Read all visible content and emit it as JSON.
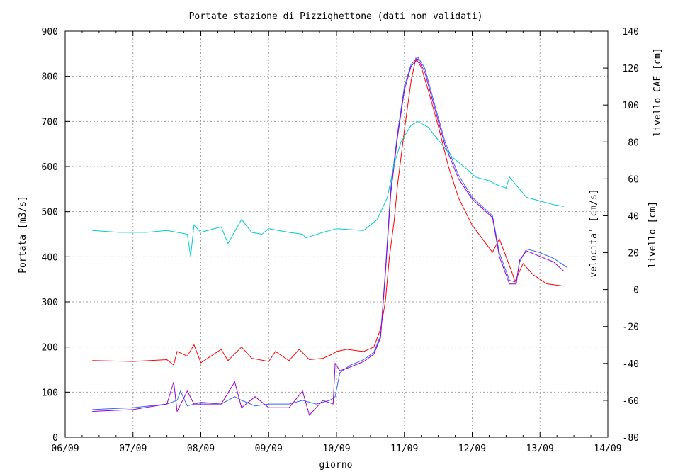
{
  "chart_data": {
    "type": "line",
    "title": "Portate stazione di Pizzighettone (dati non validati)",
    "xlabel": "giorno",
    "x_ticks": [
      "06/09",
      "07/09",
      "08/09",
      "09/09",
      "10/09",
      "11/09",
      "12/09",
      "13/09",
      "14/09"
    ],
    "xlim": [
      0,
      8
    ],
    "y_left": {
      "label": "Portata [m3/s]",
      "color": "#ff0000",
      "ylim": [
        0,
        900
      ],
      "ticks": [
        "0",
        "100",
        "200",
        "300",
        "400",
        "500",
        "600",
        "700",
        "800",
        "900"
      ]
    },
    "y_right": {
      "ylim": [
        -80,
        140
      ],
      "ticks": [
        "-80",
        "-60",
        "-40",
        "-20",
        "0",
        "20",
        "40",
        "60",
        "80",
        "100",
        "120",
        "140"
      ],
      "labels": [
        {
          "text": "livello CAE [cm]",
          "color": "#9900cc"
        },
        {
          "text": "velocita' [cm/s]",
          "color": "#00cccc"
        },
        {
          "text": "livello [cm]",
          "color": "#3366ff"
        }
      ]
    },
    "grid": true,
    "series": [
      {
        "name": "Portata [m3/s]",
        "axis": "left",
        "color": "#ff0000",
        "x": [
          0.4,
          1.0,
          1.5,
          1.6,
          1.65,
          1.8,
          1.9,
          2.0,
          2.1,
          2.3,
          2.4,
          2.6,
          2.75,
          3.0,
          3.1,
          3.3,
          3.45,
          3.6,
          3.8,
          3.95,
          4.0,
          4.15,
          4.4,
          4.55,
          4.65,
          4.72,
          4.78,
          4.85,
          4.9,
          5.0,
          5.1,
          5.17,
          5.25,
          5.35,
          5.5,
          5.65,
          5.8,
          6.0,
          6.2,
          6.3,
          6.4,
          6.5,
          6.6,
          6.63,
          6.75,
          6.9,
          7.1,
          7.35
        ],
        "y": [
          170,
          168,
          172,
          160,
          190,
          180,
          205,
          165,
          175,
          195,
          170,
          200,
          175,
          168,
          190,
          170,
          195,
          172,
          175,
          185,
          190,
          195,
          190,
          200,
          240,
          300,
          400,
          480,
          560,
          680,
          790,
          840,
          820,
          770,
          690,
          600,
          530,
          470,
          430,
          410,
          440,
          400,
          360,
          345,
          385,
          360,
          340,
          335
        ]
      },
      {
        "name": "livello [cm]",
        "axis": "right",
        "color": "#3366ff",
        "x": [
          0.4,
          1.0,
          1.5,
          1.65,
          1.7,
          1.8,
          1.9,
          2.0,
          2.3,
          2.5,
          2.6,
          2.8,
          3.0,
          3.3,
          3.5,
          3.7,
          3.9,
          3.98,
          4.05,
          4.2,
          4.4,
          4.55,
          4.65,
          4.72,
          4.8,
          4.9,
          5.0,
          5.1,
          5.2,
          5.3,
          5.45,
          5.6,
          5.8,
          6.0,
          6.15,
          6.3,
          6.4,
          6.55,
          6.65,
          6.7,
          6.8,
          7.0,
          7.2,
          7.4
        ],
        "y": [
          -65,
          -64,
          -62,
          -60,
          -55,
          -63,
          -62,
          -61,
          -62,
          -58,
          -60,
          -63,
          -62,
          -62,
          -60,
          -62,
          -60,
          -58,
          -45,
          -41,
          -38,
          -34,
          -25,
          10,
          55,
          85,
          110,
          122,
          126,
          120,
          100,
          80,
          62,
          50,
          45,
          40,
          20,
          5,
          4,
          15,
          22,
          20,
          17,
          12
        ]
      },
      {
        "name": "livello CAE [cm]",
        "axis": "right",
        "color": "#9900cc",
        "x": [
          0.4,
          1.0,
          1.5,
          1.6,
          1.65,
          1.8,
          1.9,
          2.0,
          2.3,
          2.5,
          2.6,
          2.8,
          3.0,
          3.3,
          3.5,
          3.6,
          3.8,
          3.95,
          3.98,
          4.05,
          4.2,
          4.4,
          4.55,
          4.65,
          4.72,
          4.8,
          4.9,
          5.0,
          5.1,
          5.2,
          5.3,
          5.45,
          5.6,
          5.8,
          6.0,
          6.15,
          6.3,
          6.4,
          6.55,
          6.65,
          6.7,
          6.8,
          7.0,
          7.2,
          7.35
        ],
        "y": [
          -66,
          -65,
          -62,
          -50,
          -66,
          -55,
          -62,
          -62,
          -62,
          -50,
          -64,
          -58,
          -64,
          -64,
          -55,
          -68,
          -60,
          -62,
          -40,
          -44,
          -42,
          -39,
          -35,
          -26,
          8,
          52,
          83,
          108,
          121,
          125,
          118,
          98,
          78,
          60,
          49,
          44,
          39,
          18,
          3,
          3,
          16,
          21,
          18,
          15,
          10
        ]
      },
      {
        "name": "velocita' [cm/s]",
        "axis": "right",
        "color": "#00cccc",
        "x": [
          0.4,
          0.8,
          1.2,
          1.5,
          1.8,
          1.85,
          1.9,
          2.0,
          2.3,
          2.4,
          2.6,
          2.75,
          2.9,
          3.0,
          3.3,
          3.5,
          3.55,
          3.8,
          4.0,
          4.4,
          4.6,
          4.75,
          4.85,
          4.95,
          5.1,
          5.2,
          5.35,
          5.5,
          5.7,
          5.9,
          6.05,
          6.25,
          6.35,
          6.5,
          6.55,
          6.8,
          7.0,
          7.2,
          7.35
        ],
        "y": [
          32,
          31,
          31,
          32,
          30,
          18,
          35,
          31,
          34,
          25,
          38,
          31,
          30,
          33,
          31,
          30,
          28,
          31,
          33,
          32,
          38,
          50,
          68,
          80,
          89,
          91,
          88,
          81,
          72,
          66,
          61,
          59,
          57,
          55,
          61,
          50,
          48,
          46,
          45
        ]
      }
    ]
  }
}
